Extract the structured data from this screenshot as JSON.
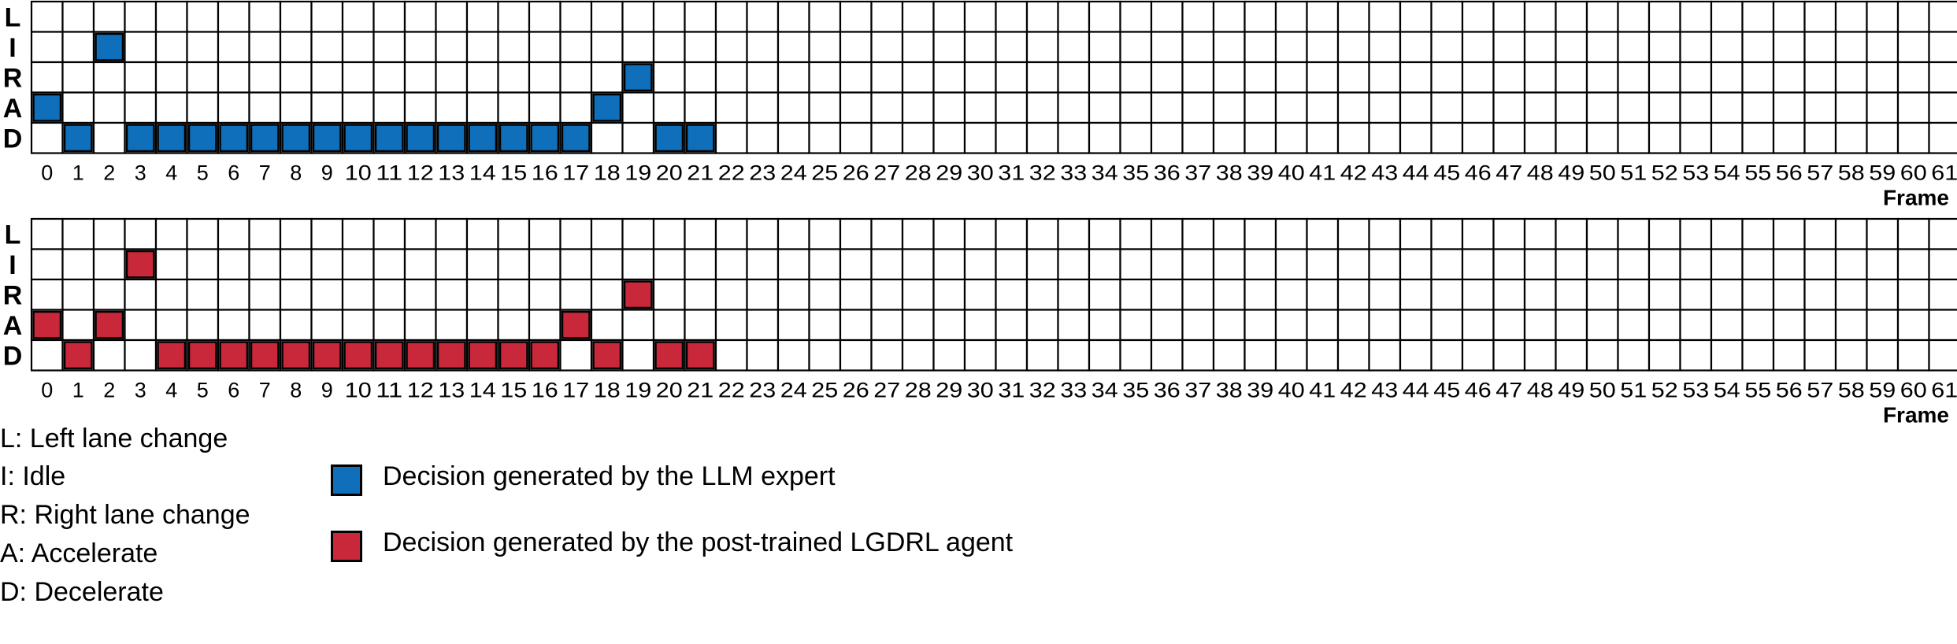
{
  "chart_data": [
    {
      "type": "heatmap",
      "rows": [
        "L",
        "I",
        "R",
        "A",
        "D"
      ],
      "x": [
        0,
        1,
        2,
        3,
        4,
        5,
        6,
        7,
        8,
        9,
        10,
        11,
        12,
        13,
        14,
        15,
        16,
        17,
        18,
        19,
        20,
        21,
        22,
        23,
        24,
        25,
        26,
        27,
        28,
        29,
        30,
        31,
        32,
        33,
        34,
        35,
        36,
        37,
        38,
        39,
        40,
        41,
        42,
        43,
        44,
        45,
        46,
        47,
        48,
        49,
        50,
        51,
        52,
        53,
        54,
        55,
        56,
        57,
        58,
        59,
        60,
        61
      ],
      "xlabel": "Frame",
      "series": [
        {
          "name": "Decision generated by the LLM expert",
          "color": "#0f6fba",
          "decisions": [
            "A",
            "D",
            "I",
            "D",
            "D",
            "D",
            "D",
            "D",
            "D",
            "D",
            "D",
            "D",
            "D",
            "D",
            "D",
            "D",
            "D",
            "D",
            "A",
            "R",
            "D",
            "D"
          ]
        }
      ]
    },
    {
      "type": "heatmap",
      "rows": [
        "L",
        "I",
        "R",
        "A",
        "D"
      ],
      "x": [
        0,
        1,
        2,
        3,
        4,
        5,
        6,
        7,
        8,
        9,
        10,
        11,
        12,
        13,
        14,
        15,
        16,
        17,
        18,
        19,
        20,
        21,
        22,
        23,
        24,
        25,
        26,
        27,
        28,
        29,
        30,
        31,
        32,
        33,
        34,
        35,
        36,
        37,
        38,
        39,
        40,
        41,
        42,
        43,
        44,
        45,
        46,
        47,
        48,
        49,
        50,
        51,
        52,
        53,
        54,
        55,
        56,
        57,
        58,
        59,
        60,
        61
      ],
      "xlabel": "Frame",
      "series": [
        {
          "name": "Decision generated by the post-trained LGDRL agent",
          "color": "#c8283a",
          "decisions": [
            "A",
            "D",
            "A",
            "I",
            "D",
            "D",
            "D",
            "D",
            "D",
            "D",
            "D",
            "D",
            "D",
            "D",
            "D",
            "D",
            "D",
            "A",
            "D",
            "R",
            "D",
            "D"
          ]
        }
      ]
    }
  ],
  "legend": {
    "key": [
      "L: Left lane change",
      " I: Idle",
      "R: Right lane change",
      "A: Accelerate",
      "D: Decelerate"
    ],
    "series": [
      {
        "label": "Decision generated by the LLM expert",
        "color": "#0f6fba"
      },
      {
        "label": "Decision generated by the post-trained LGDRL agent",
        "color": "#c8283a"
      }
    ]
  }
}
